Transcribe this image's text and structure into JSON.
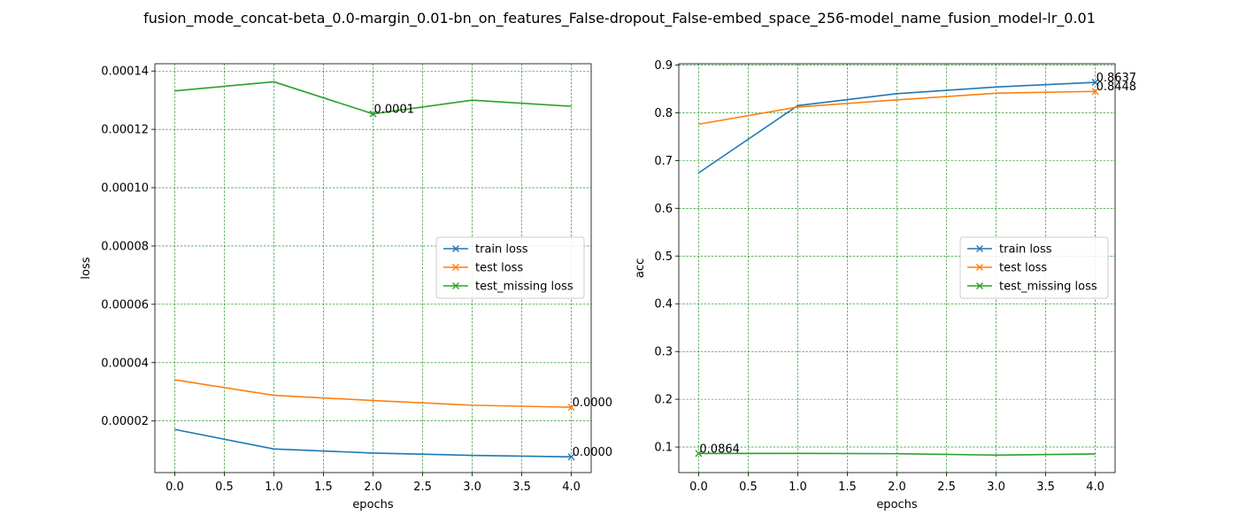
{
  "figure": {
    "title": "fusion_mode_concat-beta_0.0-margin_0.01-bn_on_features_False-dropout_False-embed_space_256-model_name_fusion_model-lr_0.01"
  },
  "chart_data": [
    {
      "type": "line",
      "xlabel": "epochs",
      "ylabel": "loss",
      "x": [
        0,
        1,
        2,
        3,
        4
      ],
      "xlim": [
        -0.2,
        4.2
      ],
      "ylim": [
        2.3e-06,
        0.0001425
      ],
      "xticks": [
        "0.0",
        "0.5",
        "1.0",
        "1.5",
        "2.0",
        "2.5",
        "3.0",
        "3.5",
        "4.0"
      ],
      "yticks": [
        "0.00002",
        "0.00004",
        "0.00006",
        "0.00008",
        "0.00010",
        "0.00012",
        "0.00014"
      ],
      "grid": true,
      "legend_position": "center-right",
      "series": [
        {
          "name": "train loss",
          "color": "#1f77b4",
          "values": [
            1.71e-05,
            1.04e-05,
            9e-06,
            8.2e-06,
            7.7e-06
          ],
          "marker_index": 4,
          "annotation": "0.0000"
        },
        {
          "name": "test loss",
          "color": "#ff7f0e",
          "values": [
            3.41e-05,
            2.88e-05,
            2.7e-05,
            2.54e-05,
            2.47e-05
          ],
          "marker_index": 4,
          "annotation": "0.0000"
        },
        {
          "name": "test_missing loss",
          "color": "#2ca02c",
          "values": [
            0.0001332,
            0.0001363,
            0.0001253,
            0.00013,
            0.0001279
          ],
          "marker_index": 2,
          "annotation": "0.0001"
        }
      ]
    },
    {
      "type": "line",
      "xlabel": "epochs",
      "ylabel": "acc",
      "x": [
        0,
        1,
        2,
        3,
        4
      ],
      "xlim": [
        -0.2,
        4.2
      ],
      "ylim": [
        0.0464,
        0.9027
      ],
      "xticks": [
        "0.0",
        "0.5",
        "1.0",
        "1.5",
        "2.0",
        "2.5",
        "3.0",
        "3.5",
        "4.0"
      ],
      "yticks": [
        "0.1",
        "0.2",
        "0.3",
        "0.4",
        "0.5",
        "0.6",
        "0.7",
        "0.8",
        "0.9"
      ],
      "grid": true,
      "legend_position": "center-right",
      "series": [
        {
          "name": "train loss",
          "color": "#1f77b4",
          "values": [
            0.674,
            0.815,
            0.84,
            0.854,
            0.8637
          ],
          "marker_index": 4,
          "annotation": "0.8637"
        },
        {
          "name": "test loss",
          "color": "#ff7f0e",
          "values": [
            0.776,
            0.812,
            0.827,
            0.841,
            0.8448
          ],
          "marker_index": 4,
          "annotation": "0.8448"
        },
        {
          "name": "test_missing loss",
          "color": "#2ca02c",
          "values": [
            0.0864,
            0.0866,
            0.086,
            0.083,
            0.0855
          ],
          "marker_index": 0,
          "annotation": "0.0864"
        }
      ]
    }
  ]
}
